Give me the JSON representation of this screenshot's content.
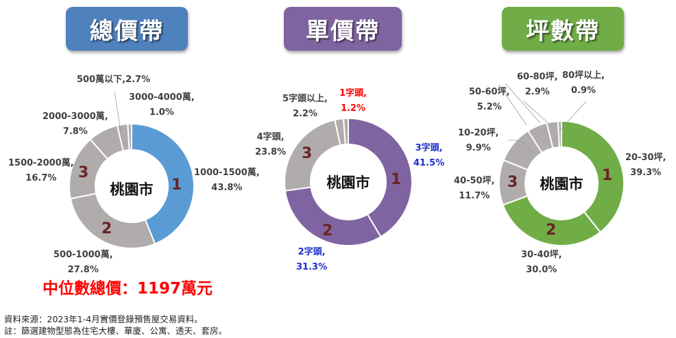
{
  "titles": [
    {
      "label": "總價帶",
      "color": "#4f81bd"
    },
    {
      "label": "單價帶",
      "color": "#8064a2"
    },
    {
      "label": "坪數帶",
      "color": "#70ad47"
    }
  ],
  "center_label": "桃園市",
  "median": "中位數總價：1197萬元",
  "notes": [
    "資料來源：2023年1-4月實價登錄預售屋交易資料。",
    "註：篩選建物型態為住宅大樓、華廈、公寓、透天、套房。"
  ],
  "chart_data": [
    {
      "type": "pie",
      "subtype": "donut",
      "title": "總價帶",
      "center_text": "桃園市",
      "categories": [
        "1000-1500萬",
        "500-1000萬",
        "1500-2000萬",
        "2000-3000萬",
        "500萬以下",
        "3000-4000萬"
      ],
      "values": [
        43.8,
        27.8,
        16.7,
        7.8,
        2.7,
        1.0
      ],
      "colors": [
        "#5b9bd5",
        "#b0acac",
        "#b0acac",
        "#b0acac",
        "#b0acac",
        "#b0acac"
      ],
      "ranks": {
        "1000-1500萬": 1,
        "500-1000萬": 2,
        "1500-2000萬": 3
      },
      "labels": [
        {
          "line1": "1000-1500萬,",
          "line2": "43.8%"
        },
        {
          "line1": "500-1000萬,",
          "line2": "27.8%"
        },
        {
          "line1": "1500-2000萬,",
          "line2": "16.7%"
        },
        {
          "line1": "2000-3000萬,",
          "line2": "7.8%"
        },
        {
          "line1": "500萬以下,2.7%",
          "line2": ""
        },
        {
          "line1": "3000-4000萬,",
          "line2": "1.0%"
        }
      ]
    },
    {
      "type": "pie",
      "subtype": "donut",
      "title": "單價帶",
      "center_text": "桃園市",
      "categories": [
        "3字頭",
        "2字頭",
        "4字頭",
        "5字頭以上",
        "1字頭"
      ],
      "values": [
        41.5,
        31.3,
        23.8,
        2.2,
        1.2
      ],
      "colors": [
        "#8064a2",
        "#8064a2",
        "#b0acac",
        "#b0acac",
        "#b0acac"
      ],
      "ranks": {
        "3字頭": 1,
        "2字頭": 2,
        "4字頭": 3
      },
      "labels": [
        {
          "line1": "3字頭,",
          "line2": "41.5%",
          "color": "#1f2fcc"
        },
        {
          "line1": "2字頭,",
          "line2": "31.3%",
          "color": "#1f2fcc"
        },
        {
          "line1": "4字頭,",
          "line2": "23.8%",
          "color": "#404040"
        },
        {
          "line1": "5字頭以上,",
          "line2": "2.2%",
          "color": "#404040"
        },
        {
          "line1": "1字頭,",
          "line2": "1.2%",
          "color": "#ff0000"
        }
      ]
    },
    {
      "type": "pie",
      "subtype": "donut",
      "title": "坪數帶",
      "center_text": "桃園市",
      "categories": [
        "20-30坪",
        "30-40坪",
        "40-50坪",
        "10-20坪",
        "50-60坪",
        "60-80坪",
        "80坪以上"
      ],
      "values": [
        39.3,
        30.0,
        11.7,
        9.9,
        5.2,
        2.9,
        0.9
      ],
      "colors": [
        "#70ad47",
        "#70ad47",
        "#b0acac",
        "#b0acac",
        "#b0acac",
        "#b0acac",
        "#b0acac"
      ],
      "ranks": {
        "20-30坪": 1,
        "30-40坪": 2,
        "40-50坪": 3
      },
      "labels": [
        {
          "line1": "20-30坪,",
          "line2": "39.3%"
        },
        {
          "line1": "30-40坪,",
          "line2": "30.0%"
        },
        {
          "line1": "40-50坪,",
          "line2": "11.7%"
        },
        {
          "line1": "10-20坪,",
          "line2": "9.9%"
        },
        {
          "line1": "50-60坪,",
          "line2": "5.2%"
        },
        {
          "line1": "60-80坪,",
          "line2": "2.9%"
        },
        {
          "line1": "80坪以上,",
          "line2": "0.9%"
        }
      ]
    }
  ]
}
